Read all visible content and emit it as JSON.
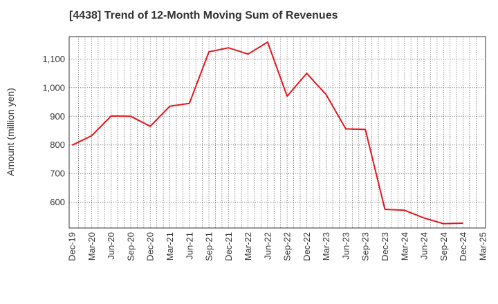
{
  "chart_data": {
    "type": "line",
    "title": "[4438]  Trend of 12-Month Moving Sum of Revenues",
    "xlabel": "",
    "ylabel": "Amount (million yen)",
    "x_ticks": [
      "Dec-19",
      "Mar-20",
      "Jun-20",
      "Sep-20",
      "Dec-20",
      "Mar-21",
      "Jun-21",
      "Sep-21",
      "Dec-21",
      "Mar-22",
      "Jun-22",
      "Sep-22",
      "Dec-22",
      "Mar-23",
      "Jun-23",
      "Sep-23",
      "Dec-23",
      "Mar-24",
      "Jun-24",
      "Sep-24",
      "Dec-24",
      "Mar-25"
    ],
    "y_ticks": [
      600,
      700,
      800,
      900,
      1000,
      1100
    ],
    "y_tick_labels": [
      "600",
      "700",
      "800",
      "900",
      "1,000",
      "1,100"
    ],
    "ylim": [
      510,
      1178
    ],
    "grid": true,
    "line_color": "#e8141b",
    "series": [
      {
        "x": [
          "Dec-19",
          "Mar-20",
          "Jun-20",
          "Sep-20",
          "Dec-20",
          "Mar-21",
          "Jun-21",
          "Sep-21",
          "Dec-21",
          "Mar-22",
          "Jun-22",
          "Sep-22",
          "Dec-22",
          "Mar-23",
          "Jun-23",
          "Sep-23",
          "Dec-23",
          "Mar-24",
          "Jun-24",
          "Sep-24",
          "Dec-24"
        ],
        "values": [
          799,
          832,
          901,
          900,
          865,
          935,
          945,
          1125,
          1139,
          1117,
          1159,
          970,
          1050,
          975,
          856,
          854,
          575,
          572,
          545,
          525,
          527
        ]
      }
    ]
  }
}
